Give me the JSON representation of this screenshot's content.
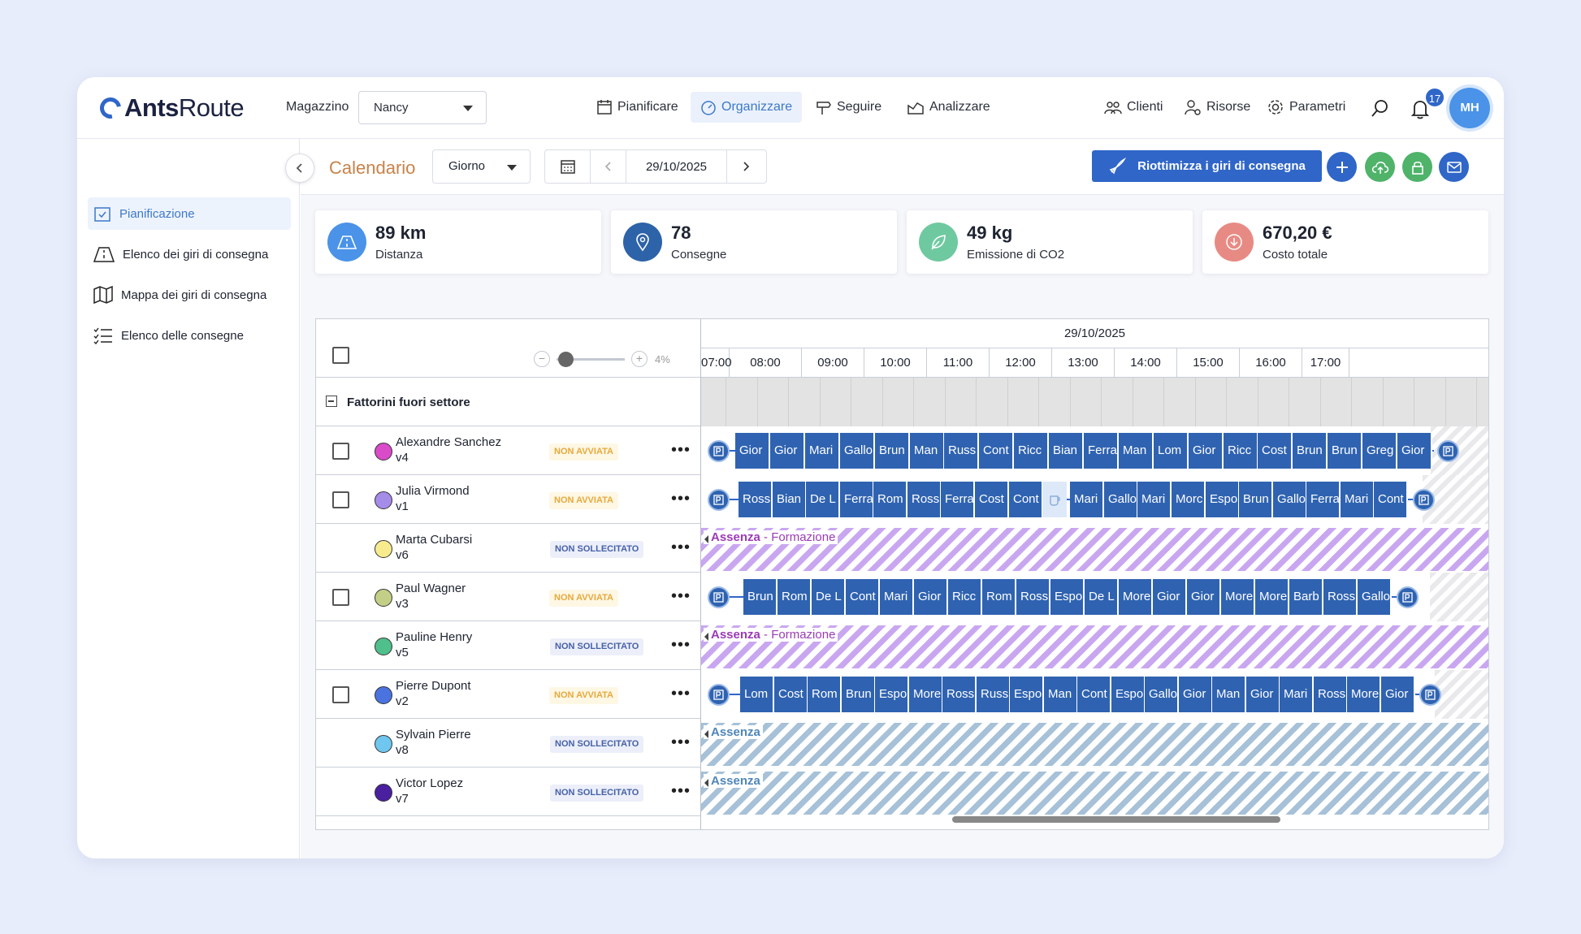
{
  "app": {
    "logo_bold": "Ants",
    "logo_rest": "Route",
    "avatar": "MH",
    "notifications": "17"
  },
  "header": {
    "magazzino_label": "Magazzino",
    "magazzino_value": "Nancy",
    "nav": [
      "Pianificare",
      "Organizzare",
      "Seguire",
      "Analizzare"
    ],
    "right": [
      "Clienti",
      "Risorse",
      "Parametri"
    ]
  },
  "sidebar": {
    "items": [
      "Pianificazione",
      "Elenco dei giri di consegna",
      "Mappa dei giri di consegna",
      "Elenco delle consegne"
    ]
  },
  "toolbar": {
    "title": "Calendario",
    "view": "Giorno",
    "date": "29/10/2025",
    "reoptimize": "Riottimizza i giri di consegna"
  },
  "kpis": [
    {
      "value": "89 km",
      "label": "Distanza"
    },
    {
      "value": "78",
      "label": "Consegne"
    },
    {
      "value": "49 kg",
      "label": "Emissione di CO2"
    },
    {
      "value": "670,20 €",
      "label": "Costo totale"
    }
  ],
  "colors": {
    "primary": "#2f66c8",
    "kpi_distance": "#4a93e8",
    "kpi_deliveries": "#2d63a8",
    "kpi_co2": "#6fc9a0",
    "kpi_cost": "#e88a84"
  },
  "gantt": {
    "zoom": "4%",
    "date": "29/10/2025",
    "hours": [
      "07:00",
      "08:00",
      "09:00",
      "10:00",
      "11:00",
      "12:00",
      "13:00",
      "14:00",
      "15:00",
      "16:00",
      "17:00"
    ],
    "group": "Fattorini fuori settore",
    "drivers": [
      {
        "name": "Alexandre Sanchez",
        "vehicle": "v4",
        "status": "NON AVVIATA",
        "color": "#d94bc8"
      },
      {
        "name": "Julia Virmond",
        "vehicle": "v1",
        "status": "NON AVVIATA",
        "color": "#a58ce8"
      },
      {
        "name": "Marta Cubarsi",
        "vehicle": "v6",
        "status": "NON SOLLECITATO",
        "color": "#f7eb8e"
      },
      {
        "name": "Paul Wagner",
        "vehicle": "v3",
        "status": "NON AVVIATA",
        "color": "#c3cf86"
      },
      {
        "name": "Pauline Henry",
        "vehicle": "v5",
        "status": "NON SOLLECITATO",
        "color": "#4fbf8c"
      },
      {
        "name": "Pierre Dupont",
        "vehicle": "v2",
        "status": "NON AVVIATA",
        "color": "#4a73e0"
      },
      {
        "name": "Sylvain Pierre",
        "vehicle": "v8",
        "status": "NON SOLLECITATO",
        "color": "#6fc6ee"
      },
      {
        "name": "Victor Lopez",
        "vehicle": "v7",
        "status": "NON SOLLECITATO",
        "color": "#4a1fa0"
      }
    ],
    "absence_label": "Assenza",
    "absence_separator": " - ",
    "absence_type": "Formazione",
    "routes": [
      [
        "Gior",
        "Gior",
        "Mari",
        "Gallo",
        "Brun",
        "Man",
        "Russ",
        "Cont",
        "Ricc",
        "Bian",
        "Ferra",
        "Man",
        "Lom",
        "Gior",
        "Ricc",
        "Cost",
        "Brun",
        "Brun",
        "Greg",
        "Gior"
      ],
      [
        "Ross",
        "Bian",
        "De L",
        "Ferra",
        "Rom",
        "Ross",
        "Ferra",
        "Cost",
        "Cont",
        "Mari",
        "Gallo",
        "Mari",
        "Morc",
        "Espo",
        "Brun",
        "Gallo",
        "Ferra",
        "Mari",
        "Cont"
      ],
      [
        "Brun",
        "Rom",
        "De L",
        "Cont",
        "Mari",
        "Gior",
        "Ricc",
        "Rom",
        "Ross",
        "Espo",
        "De L",
        "More",
        "Gior",
        "Gior",
        "More",
        "More",
        "Barb",
        "Ross",
        "Gallo"
      ],
      [
        "Lom",
        "Cost",
        "Rom",
        "Brun",
        "Espo",
        "More",
        "Ross",
        "Russ",
        "Espo",
        "Man",
        "Cont",
        "Espo",
        "Gallo",
        "Gior",
        "Man",
        "Gior",
        "Mari",
        "Ross",
        "More",
        "Gior"
      ]
    ]
  }
}
